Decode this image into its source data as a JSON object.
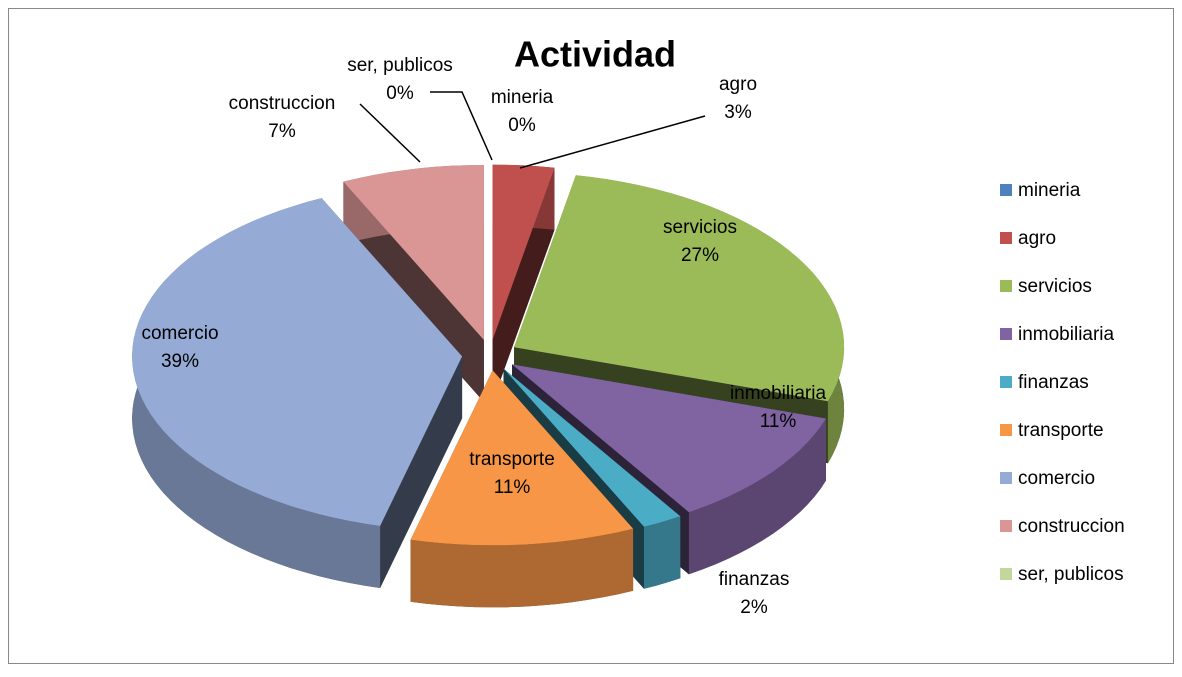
{
  "chart_data": {
    "type": "pie3d",
    "title": "Actividad",
    "categories": [
      "mineria",
      "agro",
      "servicios",
      "inmobiliaria",
      "finanzas",
      "transporte",
      "comercio",
      "construccion",
      "ser, publicos"
    ],
    "values": [
      0,
      3,
      27,
      11,
      2,
      11,
      39,
      7,
      0
    ],
    "value_labels": [
      "0%",
      "3%",
      "27%",
      "11%",
      "2%",
      "11%",
      "39%",
      "7%",
      "0%"
    ],
    "colors": [
      "#4f81bd",
      "#c0504d",
      "#9bbb59",
      "#8064a2",
      "#4bacc6",
      "#f79646",
      "#95abd6",
      "#d99694",
      "#c3d69b"
    ],
    "legend": "right"
  }
}
